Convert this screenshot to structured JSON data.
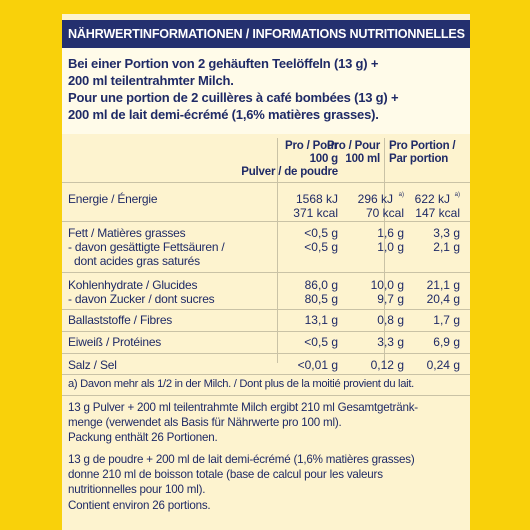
{
  "header": {
    "title": "NÄHRWERTINFORMATIONEN / INFORMATIONS NUTRITIONNELLES"
  },
  "intro": {
    "line1": "Bei einer Portion von 2 gehäuften Teelöffeln (13 g) +",
    "line2": "200 ml teilentrahmter Milch.",
    "line3": "Pour une portion de 2 cuillères à café bombées (13 g) +",
    "line4": "200 ml de lait demi-écrémé (1,6% matières grasses)."
  },
  "columns": {
    "c1_l1": "Pro / Pour",
    "c1_l2": "100 g",
    "c1_l3": "Pulver / de poudre",
    "c2_l1": "Pro / Pour",
    "c2_l2": "100 ml",
    "c3_l1": "Pro Portion /",
    "c3_l2": "Par portion"
  },
  "rows": {
    "energy": {
      "label": "Energie / Énergie",
      "v1a": "1568 kJ",
      "v1b": "371 kcal",
      "v2a": "296 kJ",
      "v2a_sup": "a)",
      "v2b": "70 kcal",
      "v3a": "622 kJ",
      "v3a_sup": "a)",
      "v3b": "147 kcal"
    },
    "fat": {
      "label": "Fett / Matières grasses",
      "v1": "<0,5 g",
      "v2": "1,6 g",
      "v3": "3,3 g"
    },
    "satfat": {
      "label1": "- davon gesättigte Fettsäuren /",
      "label2": "dont acides gras saturés",
      "v1": "<0,5 g",
      "v2": "1,0 g",
      "v3": "2,1 g"
    },
    "carbs": {
      "label": "Kohlenhydrate / Glucides",
      "v1": "86,0 g",
      "v2": "10,0 g",
      "v3": "21,1 g"
    },
    "sugar": {
      "label": "- davon Zucker / dont sucres",
      "v1": "80,5 g",
      "v2": "9,7 g",
      "v3": "20,4 g"
    },
    "fibre": {
      "label": "Ballaststoffe / Fibres",
      "v1": "13,1 g",
      "v2": "0,8 g",
      "v3": "1,7 g"
    },
    "protein": {
      "label": "Eiweiß / Protéines",
      "v1": "<0,5 g",
      "v2": "3,3 g",
      "v3": "6,9 g"
    },
    "salt": {
      "label": "Salz / Sel",
      "v1": "<0,01 g",
      "v2": "0,12 g",
      "v3": "0,24 g"
    }
  },
  "footnote": "a) Davon mehr als 1/2 in der Milch. / Dont plus de la moitié provient du lait.",
  "para_de": {
    "l1": "13 g Pulver + 200 ml teilentrahmte Milch ergibt 210 ml Gesamtgetränk-",
    "l2": "menge (verwendet als Basis für Nährwerte pro 100 ml).",
    "l3": "Packung enthält 26 Portionen."
  },
  "para_fr": {
    "l1": "13 g de poudre + 200 ml de lait demi-écrémé (1,6% matières grasses)",
    "l2": "donne 210 ml de boisson totale (base de calcul pour les valeurs",
    "l3": "nutritionnelles pour 100 ml).",
    "l4": "Contient environ 26 portions."
  }
}
